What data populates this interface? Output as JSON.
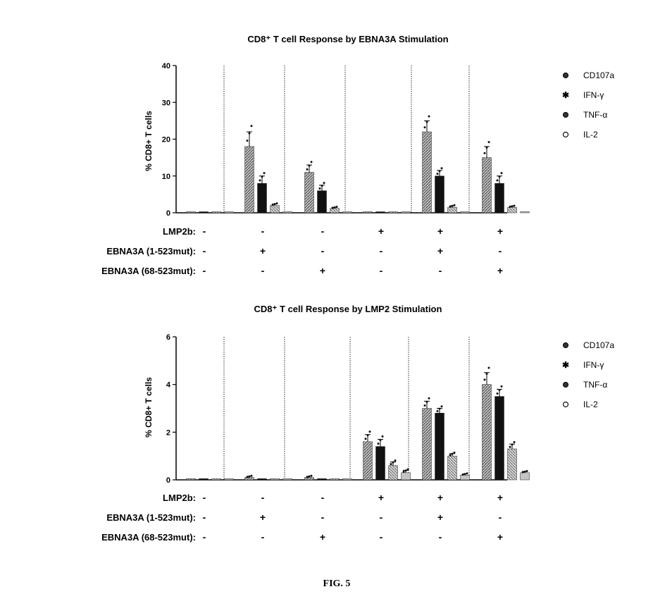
{
  "figure_label": "FIG. 5",
  "colors": {
    "CD107a": "#8c8c8c",
    "IFN-γ": "#111111",
    "TNF-α": "#9a9a9a",
    "IL-2": "#c4c4c4"
  },
  "chart_data": [
    {
      "type": "bar",
      "title": "CD8⁺ T cell Response by EBNA3A Stimulation",
      "ylabel": "% CD8+ T cells",
      "ylim": [
        0,
        40
      ],
      "yticks": [
        "0",
        "10",
        "20",
        "30",
        "40"
      ],
      "ytick_values": [
        0,
        10,
        20,
        30,
        40
      ],
      "legend": [
        "CD107a",
        "IFN-γ",
        "TNF-α",
        "IL-2"
      ],
      "legend_position": "right",
      "categories": [
        "1",
        "2",
        "3",
        "4",
        "5",
        "6"
      ],
      "series": [
        {
          "name": "CD107a",
          "values": [
            0.1,
            18,
            11,
            0.1,
            22,
            15
          ],
          "errors": [
            0,
            4,
            2,
            0,
            3,
            3
          ]
        },
        {
          "name": "IFN-γ",
          "values": [
            0.1,
            8,
            6,
            0.1,
            10,
            8
          ],
          "errors": [
            0,
            2,
            1.5,
            0,
            1.5,
            2
          ]
        },
        {
          "name": "TNF-α",
          "values": [
            0.1,
            2,
            1.2,
            0.1,
            1.5,
            1.5
          ],
          "errors": [
            0,
            0.4,
            0.3,
            0,
            0.4,
            0.3
          ]
        },
        {
          "name": "IL-2",
          "values": [
            0.1,
            0.3,
            0.2,
            0.1,
            0.3,
            0.3
          ],
          "errors": [
            0,
            0,
            0,
            0,
            0,
            0
          ]
        }
      ],
      "condition_rows": [
        {
          "label": "LMP2b:",
          "signs": [
            "-",
            "-",
            "-",
            "+",
            "+",
            "+"
          ]
        },
        {
          "label": "EBNA3A (1-523mut):",
          "signs": [
            "-",
            "+",
            "-",
            "-",
            "+",
            "-"
          ]
        },
        {
          "label": "EBNA3A (68-523mut):",
          "signs": [
            "-",
            "-",
            "+",
            "-",
            "-",
            "+"
          ]
        }
      ]
    },
    {
      "type": "bar",
      "title": "CD8⁺ T cell Response by LMP2 Stimulation",
      "ylabel": "% CD8+ T cells",
      "ylim": [
        0,
        6
      ],
      "yticks": [
        "0",
        "2",
        "4",
        "6"
      ],
      "ytick_values": [
        0,
        2,
        4,
        6
      ],
      "legend": [
        "CD107a",
        "IFN-γ",
        "TNF-α",
        "IL-2"
      ],
      "legend_position": "right",
      "categories": [
        "1",
        "2",
        "3",
        "4",
        "5",
        "6"
      ],
      "series": [
        {
          "name": "CD107a",
          "values": [
            0.05,
            0.1,
            0.1,
            1.6,
            3.0,
            4.0
          ],
          "errors": [
            0,
            0.05,
            0.05,
            0.3,
            0.3,
            0.5
          ]
        },
        {
          "name": "IFN-γ",
          "values": [
            0.05,
            0.05,
            0.05,
            1.4,
            2.8,
            3.5
          ],
          "errors": [
            0,
            0,
            0,
            0.3,
            0.2,
            0.3
          ]
        },
        {
          "name": "TNF-α",
          "values": [
            0.05,
            0.05,
            0.05,
            0.6,
            1.0,
            1.3
          ],
          "errors": [
            0,
            0,
            0,
            0.15,
            0.1,
            0.2
          ]
        },
        {
          "name": "IL-2",
          "values": [
            0.05,
            0.05,
            0.05,
            0.3,
            0.2,
            0.3
          ],
          "errors": [
            0,
            0,
            0,
            0.1,
            0.05,
            0.05
          ]
        }
      ],
      "condition_rows": [
        {
          "label": "LMP2b:",
          "signs": [
            "-",
            "-",
            "-",
            "+",
            "+",
            "+"
          ]
        },
        {
          "label": "EBNA3A (1-523mut):",
          "signs": [
            "-",
            "+",
            "-",
            "-",
            "+",
            "-"
          ]
        },
        {
          "label": "EBNA3A (68-523mut):",
          "signs": [
            "-",
            "-",
            "+",
            "-",
            "-",
            "+"
          ]
        }
      ]
    }
  ]
}
